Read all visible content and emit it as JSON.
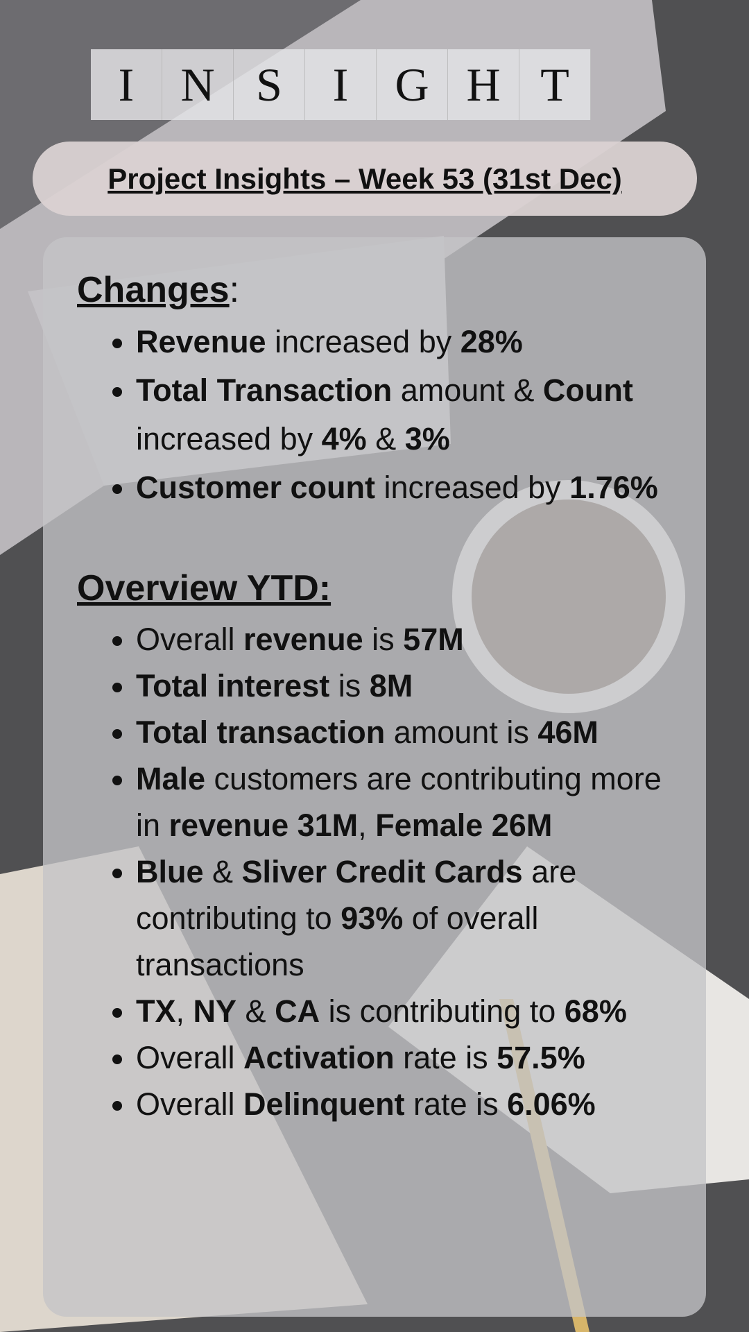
{
  "header": {
    "letters": [
      "I",
      "N",
      "S",
      "I",
      "G",
      "H",
      "T"
    ],
    "title": "Project Insights – Week 53 (31st Dec)"
  },
  "sections": [
    {
      "heading": [
        {
          "text": "Changes",
          "underline": true
        },
        {
          "text": ":",
          "underline": false
        }
      ],
      "items": [
        [
          {
            "text": "Revenue",
            "bold": true
          },
          {
            "text": " increased by ",
            "bold": false
          },
          {
            "text": "28%",
            "bold": true
          }
        ],
        [
          {
            "text": "Total Transaction",
            "bold": true
          },
          {
            "text": " amount & ",
            "bold": false
          },
          {
            "text": "Count",
            "bold": true
          },
          {
            "text": " increased by ",
            "bold": false
          },
          {
            "text": "4%",
            "bold": true
          },
          {
            "text": " & ",
            "bold": false
          },
          {
            "text": "3%",
            "bold": true
          }
        ],
        [
          {
            "text": "Customer count",
            "bold": true
          },
          {
            "text": " increased by ",
            "bold": false
          },
          {
            "text": "1.76%",
            "bold": true
          }
        ]
      ]
    },
    {
      "heading": [
        {
          "text": "Overview YTD:",
          "underline": true
        }
      ],
      "items": [
        [
          {
            "text": "Overall ",
            "bold": false
          },
          {
            "text": "revenue",
            "bold": true
          },
          {
            "text": " is ",
            "bold": false
          },
          {
            "text": "57M",
            "bold": true
          }
        ],
        [
          {
            "text": "Total interest",
            "bold": true
          },
          {
            "text": " is ",
            "bold": false
          },
          {
            "text": "8M",
            "bold": true
          }
        ],
        [
          {
            "text": "Total transaction",
            "bold": true
          },
          {
            "text": " amount is ",
            "bold": false
          },
          {
            "text": "46M",
            "bold": true
          }
        ],
        [
          {
            "text": "Male",
            "bold": true
          },
          {
            "text": " customers are contributing more in ",
            "bold": false
          },
          {
            "text": "revenue 31M",
            "bold": true
          },
          {
            "text": ", ",
            "bold": false
          },
          {
            "text": "Female 26M",
            "bold": true
          }
        ],
        [
          {
            "text": "Blue",
            "bold": true
          },
          {
            "text": " & ",
            "bold": false
          },
          {
            "text": "Sliver Credit Cards",
            "bold": true
          },
          {
            "text": " are contributing to ",
            "bold": false
          },
          {
            "text": "93%",
            "bold": true
          },
          {
            "text": " of overall transactions",
            "bold": false
          }
        ],
        [
          {
            "text": "TX",
            "bold": true
          },
          {
            "text": ", ",
            "bold": false
          },
          {
            "text": "NY",
            "bold": true
          },
          {
            "text": " & ",
            "bold": false
          },
          {
            "text": "CA",
            "bold": true
          },
          {
            "text": " is contributing to ",
            "bold": false
          },
          {
            "text": "68%",
            "bold": true
          }
        ],
        [
          {
            "text": "Overall ",
            "bold": false
          },
          {
            "text": "Activation",
            "bold": true
          },
          {
            "text": " rate is ",
            "bold": false
          },
          {
            "text": "57.5%",
            "bold": true
          }
        ],
        [
          {
            "text": "Overall ",
            "bold": false
          },
          {
            "text": "Delinquent",
            "bold": true
          },
          {
            "text": " rate is ",
            "bold": false
          },
          {
            "text": "6.06%",
            "bold": true
          }
        ]
      ]
    }
  ]
}
